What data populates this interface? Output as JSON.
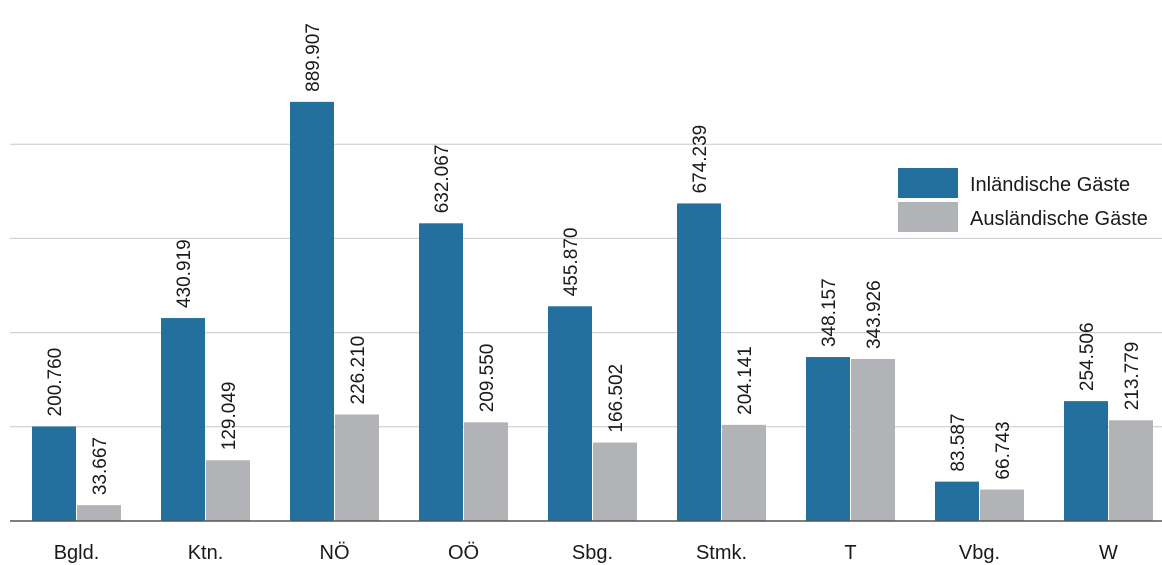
{
  "chart_data": {
    "type": "bar",
    "categories": [
      "Bgld.",
      "Ktn.",
      "NÖ",
      "OÖ",
      "Sbg.",
      "Stmk.",
      "T",
      "Vbg.",
      "W"
    ],
    "series": [
      {
        "name": "Inländische Gäste",
        "color": "#23709e",
        "values": [
          200760,
          430919,
          889907,
          632067,
          455870,
          674239,
          348157,
          83587,
          254506
        ],
        "labels": [
          "200.760",
          "430.919",
          "889.907",
          "632.067",
          "455.870",
          "674.239",
          "348.157",
          "83.587",
          "254.506"
        ]
      },
      {
        "name": "Ausländische Gäste",
        "color": "#b2b3b7",
        "values": [
          33667,
          129049,
          226210,
          209550,
          166502,
          204141,
          343926,
          66743,
          213779
        ],
        "labels": [
          "33.667",
          "129.049",
          "226.210",
          "209.550",
          "166.502",
          "204.141",
          "343.926",
          "66.743",
          "213.779"
        ]
      }
    ],
    "ylim": [
      0,
      1000000
    ],
    "grid": true,
    "legend_position": "top-right",
    "title": "",
    "xlabel": "",
    "ylabel": ""
  }
}
